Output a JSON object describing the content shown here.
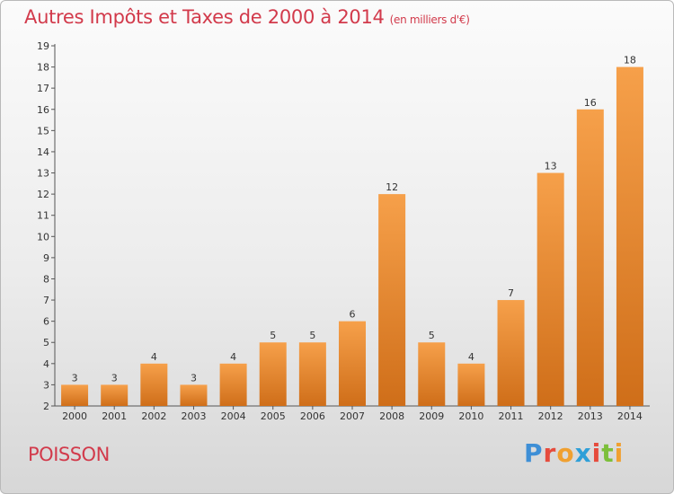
{
  "title": "Autres Impôts et Taxes de 2000 à 2014",
  "subtitle": "(en milliers d'€)",
  "place": "POISSON",
  "logo": {
    "letters": [
      "P",
      "r",
      "o",
      "x",
      "i",
      "t",
      "i"
    ],
    "colors": [
      "#3e8fd6",
      "#e64b3c",
      "#f0a030",
      "#2e9fd8",
      "#e64b3c",
      "#7cbf3a",
      "#f0a030"
    ]
  },
  "colors": {
    "bar_light": "#f6a04a",
    "bar_dark": "#cf6e19",
    "text_red": "#d23a4b"
  },
  "chart_data": {
    "type": "bar",
    "categories": [
      "2000",
      "2001",
      "2002",
      "2003",
      "2004",
      "2005",
      "2006",
      "2007",
      "2008",
      "2009",
      "2010",
      "2011",
      "2012",
      "2013",
      "2014"
    ],
    "values": [
      3,
      3,
      4,
      3,
      4,
      5,
      5,
      6,
      12,
      5,
      4,
      7,
      13,
      16,
      18
    ],
    "ylim": [
      2,
      19
    ],
    "yticks": [
      2,
      3,
      4,
      5,
      6,
      7,
      8,
      9,
      10,
      11,
      12,
      13,
      14,
      15,
      16,
      17,
      18,
      19
    ],
    "grid": false
  }
}
